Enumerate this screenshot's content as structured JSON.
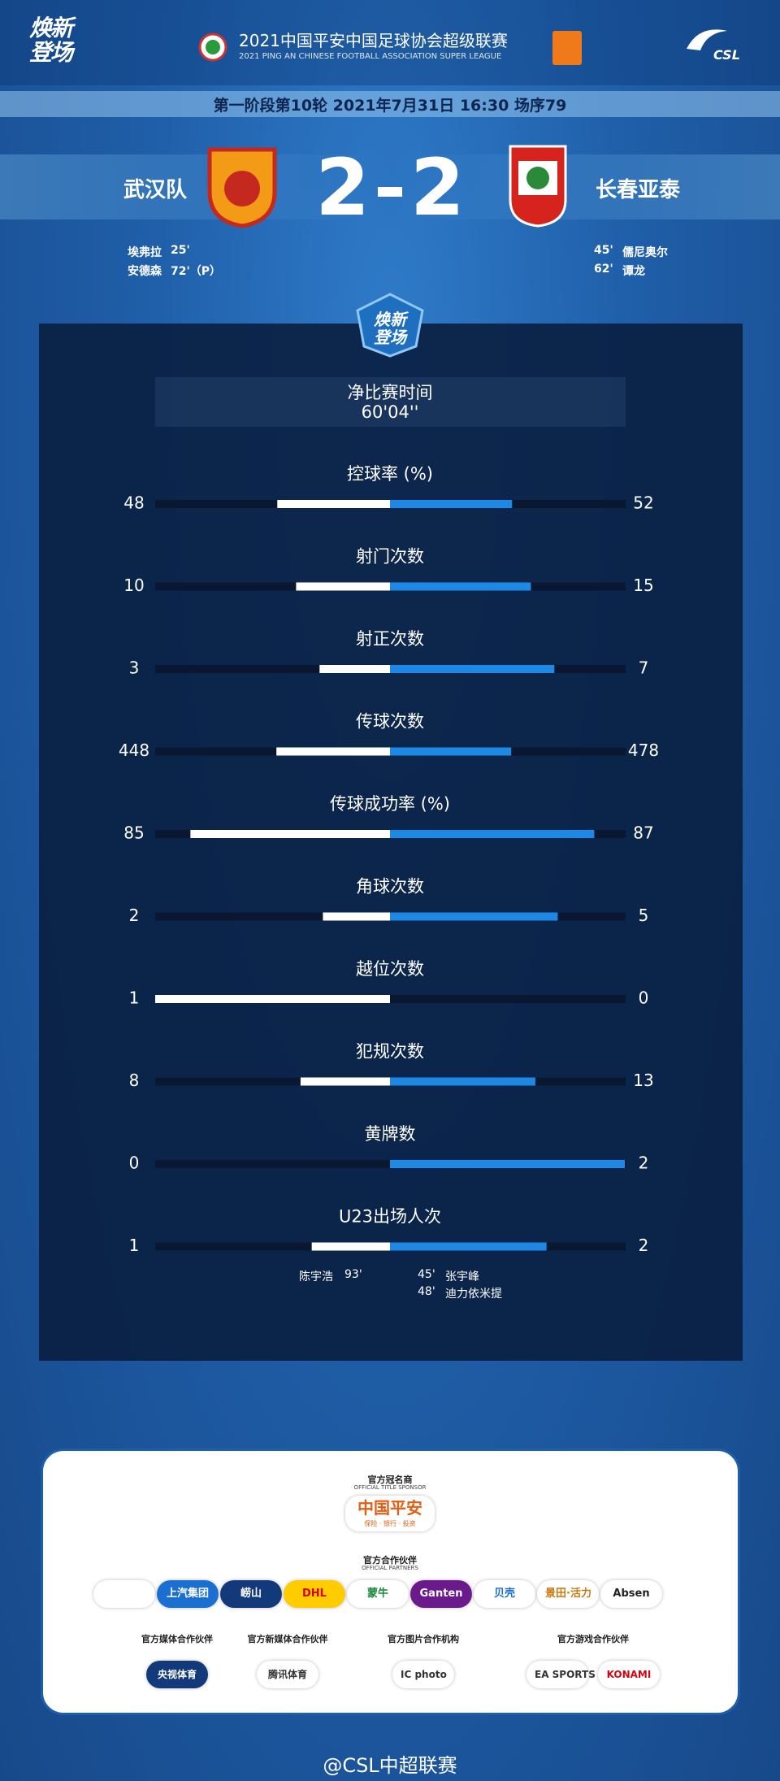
{
  "header": {
    "logo_text": "焕新登场",
    "league_title": "2021中国平安中国足球协会超级联赛",
    "league_subtitle": "2021 PING AN CHINESE FOOTBALL ASSOCIATION SUPER LEAGUE",
    "csl": "CSL"
  },
  "match_info": "第一阶段第10轮  2021年7月31日 16:30 场序79",
  "home": {
    "name": "武汉队",
    "score": 2,
    "scorers": [
      {
        "name": "埃弗拉",
        "minute": "25'"
      },
      {
        "name": "安德森",
        "minute": "72'（P）"
      }
    ]
  },
  "away": {
    "name": "长春亚泰",
    "score": 2,
    "scorers": [
      {
        "minute": "45'",
        "name": "儒尼奥尔"
      },
      {
        "minute": "62'",
        "name": "谭龙"
      }
    ]
  },
  "net_time": {
    "label": "净比赛时间",
    "value": "60'04''"
  },
  "stats": [
    {
      "label": "控球率 (%)",
      "home": 48,
      "away": 52
    },
    {
      "label": "射门次数",
      "home": 10,
      "away": 15
    },
    {
      "label": "射正次数",
      "home": 3,
      "away": 7
    },
    {
      "label": "传球次数",
      "home": 448,
      "away": 478
    },
    {
      "label": "传球成功率 (%)",
      "home": 85,
      "away": 87
    },
    {
      "label": "角球次数",
      "home": 2,
      "away": 5
    },
    {
      "label": "越位次数",
      "home": 1,
      "away": 0
    },
    {
      "label": "犯规次数",
      "home": 8,
      "away": 13
    },
    {
      "label": "黄牌数",
      "home": 0,
      "away": 2
    },
    {
      "label": "U23出场人次",
      "home": 1,
      "away": 2
    }
  ],
  "u23_players": {
    "home": [
      {
        "name": "陈宇浩",
        "minute": "93'"
      }
    ],
    "away": [
      {
        "minute": "45'",
        "name": "张宇峰"
      },
      {
        "minute": "48'",
        "name": "迪力依米提"
      }
    ]
  },
  "sponsors": {
    "title": {
      "label": "官方冠名商",
      "label_en": "OFFICIAL TITLE SPONSOR",
      "name": "中国平安",
      "slogan": "保险 · 银行 · 投资"
    },
    "partners": {
      "label": "官方合作伙伴",
      "label_en": "OFFICIAL PARTNERS",
      "names": [
        "上汽集团",
        "崂山",
        "DHL",
        "蒙牛",
        "Ganten",
        "贝壳",
        "景田·活力",
        "Absen"
      ]
    },
    "groups": [
      {
        "label": "官方媒体合作伙伴",
        "names": [
          "央视体育"
        ]
      },
      {
        "label": "官方新媒体合作伙伴",
        "names": [
          "腾讯体育"
        ]
      },
      {
        "label": "官方图片合作机构",
        "names": [
          "IC photo"
        ]
      },
      {
        "label": "官方游戏合作伙伴",
        "names": [
          "EA SPORTS",
          "KONAMI"
        ]
      }
    ]
  },
  "footer": "@CSL中超联赛"
}
